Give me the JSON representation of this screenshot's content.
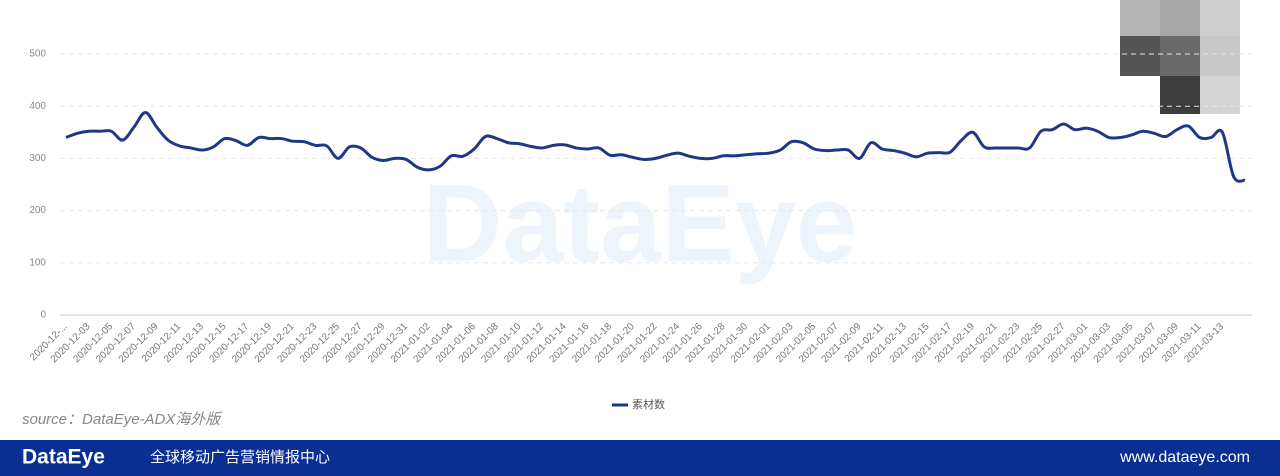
{
  "chart_data": {
    "type": "line",
    "categories": [
      "2020-12-...",
      null,
      "2020-12-03",
      null,
      "2020-12-05",
      null,
      "2020-12-07",
      null,
      "2020-12-09",
      null,
      "2020-12-11",
      null,
      "2020-12-13",
      null,
      "2020-12-15",
      null,
      "2020-12-17",
      null,
      "2020-12-19",
      null,
      "2020-12-21",
      null,
      "2020-12-23",
      null,
      "2020-12-25",
      null,
      "2020-12-27",
      null,
      "2020-12-29",
      null,
      "2020-12-31",
      null,
      "2021-01-02",
      null,
      "2021-01-04",
      null,
      "2021-01-06",
      null,
      "2021-01-08",
      null,
      "2021-01-10",
      null,
      "2021-01-12",
      null,
      "2021-01-14",
      null,
      "2021-01-16",
      null,
      "2021-01-18",
      null,
      "2021-01-20",
      null,
      "2021-01-22",
      null,
      "2021-01-24",
      null,
      "2021-01-26",
      null,
      "2021-01-28",
      null,
      "2021-01-30",
      null,
      "2021-02-01",
      null,
      "2021-02-03",
      null,
      "2021-02-05",
      null,
      "2021-02-07",
      null,
      "2021-02-09",
      null,
      "2021-02-11",
      null,
      "2021-02-13",
      null,
      "2021-02-15",
      null,
      "2021-02-17",
      null,
      "2021-02-19",
      null,
      "2021-02-21",
      null,
      "2021-02-23",
      null,
      "2021-02-25",
      null,
      "2021-02-27",
      null,
      "2021-03-01",
      null,
      "2021-03-03",
      null,
      "2021-03-05",
      null,
      "2021-03-07",
      null,
      "2021-03-09",
      null,
      "2021-03-11",
      null,
      "2021-03-13",
      null,
      null
    ],
    "series": [
      {
        "name": "素材数",
        "color": "#1f3886",
        "values": [
          340,
          348,
          352,
          352,
          352,
          335,
          360,
          388,
          360,
          335,
          324,
          320,
          316,
          322,
          338,
          334,
          325,
          340,
          338,
          338,
          333,
          332,
          325,
          324,
          300,
          322,
          320,
          302,
          296,
          300,
          298,
          283,
          278,
          285,
          305,
          304,
          318,
          342,
          338,
          330,
          328,
          323,
          320,
          325,
          326,
          320,
          318,
          320,
          306,
          307,
          302,
          298,
          300,
          306,
          310,
          304,
          300,
          300,
          305,
          305,
          307,
          309,
          310,
          316,
          332,
          330,
          318,
          315,
          316,
          316,
          300,
          330,
          318,
          315,
          310,
          303,
          310,
          311,
          312,
          335,
          350,
          322,
          320,
          320,
          320,
          320,
          352,
          355,
          366,
          355,
          358,
          352,
          340,
          340,
          345,
          352,
          348,
          342,
          355,
          362,
          340,
          340,
          350,
          265,
          258
        ]
      }
    ],
    "ylim": [
      0,
      500
    ],
    "yticks": [
      0,
      100,
      200,
      300,
      400,
      500
    ],
    "grid": true,
    "source": "source：DataEye-ADX海外版"
  },
  "footer": {
    "brand": "DataEye",
    "slogan": "全球移动广告营销情报中心",
    "url": "www.dataeye.com"
  },
  "watermark": "DataEye"
}
